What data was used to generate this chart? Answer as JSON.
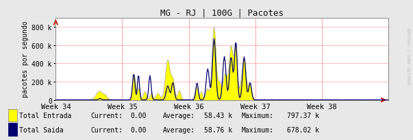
{
  "title": "MG - RJ | 100G | Pacotes",
  "ylabel": "pacotes por segundo",
  "bg_color": "#e8e8e8",
  "plot_bg_color": "#ffffff",
  "grid_color": "#ffb0b0",
  "border_color": "#888888",
  "ylim": [
    0,
    900000
  ],
  "yticks": [
    0,
    200000,
    400000,
    600000,
    800000
  ],
  "ytick_labels": [
    "0",
    "200 k",
    "400 k",
    "600 k",
    "800 k"
  ],
  "total_hours": 840,
  "week_positions": [
    0,
    168,
    336,
    504,
    672,
    840
  ],
  "week_labels": [
    "Week 34",
    "Week 35",
    "Week 36",
    "Week 37",
    "Week 38"
  ],
  "vline_color": "#ff9999",
  "entrada_color": "#ffff00",
  "entrada_line_color": "#aaaaaa",
  "saida_color": "#00006e",
  "legend_entrada": "Total Entrada",
  "legend_saida": "Total Saida",
  "current_entrada": "0.00",
  "current_saida": "0.00",
  "avg_entrada": "58.43 k",
  "avg_saida": "58.76 k",
  "max_entrada": "797.37 k",
  "max_saida": "678.02 k",
  "watermark": "RRDTOOL / TOBI OETIKER",
  "arrow_color": "#cc0000"
}
